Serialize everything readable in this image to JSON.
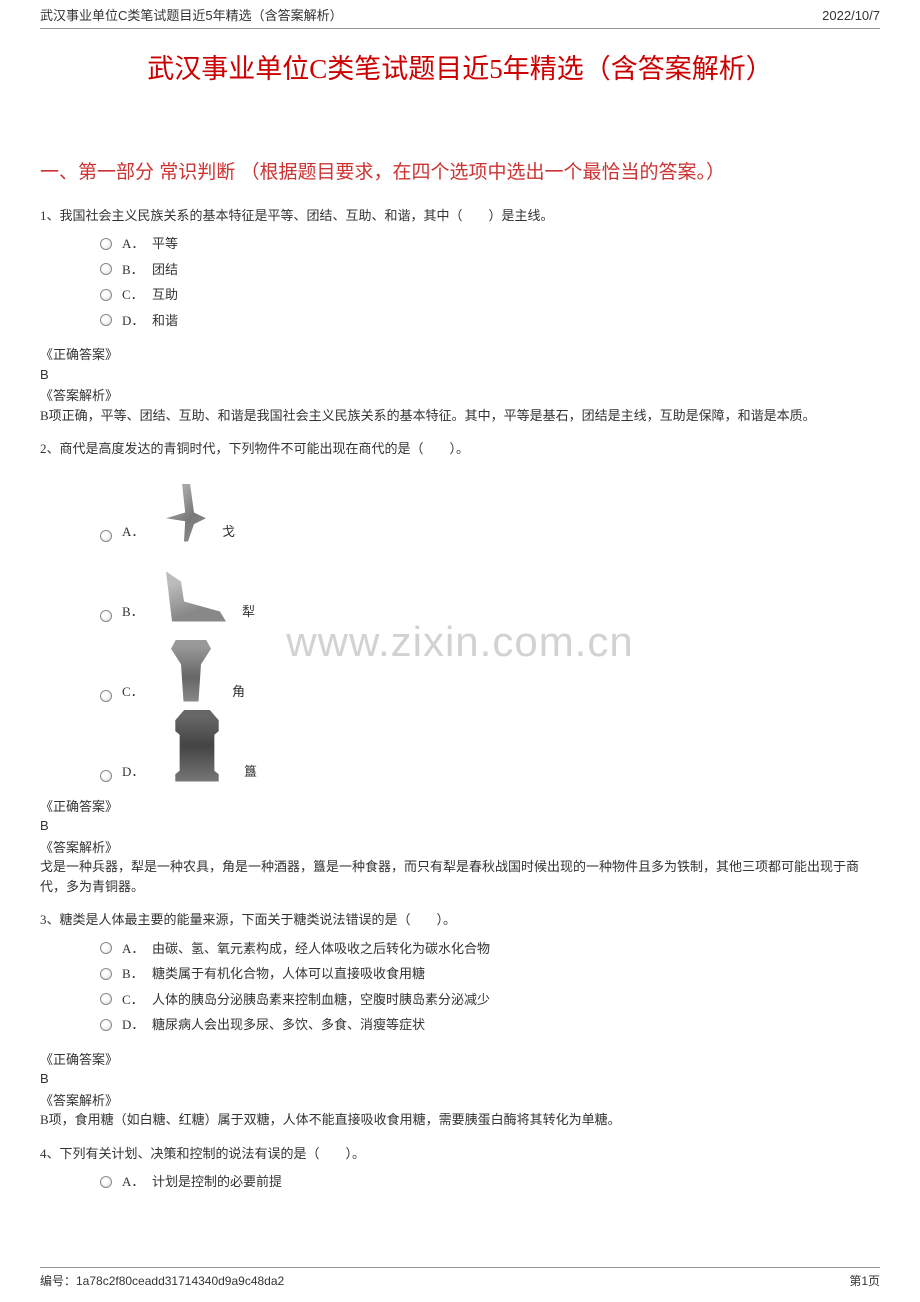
{
  "header": {
    "left": "武汉事业单位C类笔试题目近5年精选（含答案解析）",
    "right": "2022/10/7"
  },
  "main_title": "武汉事业单位C类笔试题目近5年精选（含答案解析）",
  "section_title": "一、第一部分 常识判断 （根据题目要求，在四个选项中选出一个最恰当的答案。）",
  "watermark": "www.zixin.com.cn",
  "questions": [
    {
      "stem": "1、我国社会主义民族关系的基本特征是平等、团结、互助、和谐，其中（　　）是主线。",
      "options": [
        {
          "letter": "A．",
          "text": "平等"
        },
        {
          "letter": "B．",
          "text": "团结"
        },
        {
          "letter": "C．",
          "text": "互助"
        },
        {
          "letter": "D．",
          "text": "和谐"
        }
      ],
      "answer_heading": "《正确答案》",
      "answer": "B",
      "analysis_heading": "《答案解析》",
      "analysis": "B项正确，平等、团结、互助、和谐是我国社会主义民族关系的基本特征。其中，平等是基石，团结是主线，互助是保障，和谐是本质。"
    },
    {
      "stem": "2、商代是高度发达的青铜时代，下列物件不可能出现在商代的是（　　）。",
      "image_options": [
        {
          "letter": "A．",
          "caption": "戈",
          "img_class": "img-ge"
        },
        {
          "letter": "B．",
          "caption": "犁",
          "img_class": "img-li"
        },
        {
          "letter": "C．",
          "caption": "角",
          "img_class": "img-jiao"
        },
        {
          "letter": "D．",
          "caption": "簋",
          "img_class": "img-gui"
        }
      ],
      "answer_heading": "《正确答案》",
      "answer": "B",
      "analysis_heading": "《答案解析》",
      "analysis": "戈是一种兵器，犁是一种农具，角是一种酒器，簋是一种食器，而只有犁是春秋战国时候出现的一种物件且多为铁制，其他三项都可能出现于商代，多为青铜器。"
    },
    {
      "stem": "3、糖类是人体最主要的能量来源，下面关于糖类说法错误的是（　　）。",
      "options": [
        {
          "letter": "A．",
          "text": "由碳、氢、氧元素构成，经人体吸收之后转化为碳水化合物"
        },
        {
          "letter": "B．",
          "text": "糖类属于有机化合物，人体可以直接吸收食用糖"
        },
        {
          "letter": "C．",
          "text": "人体的胰岛分泌胰岛素来控制血糖，空腹时胰岛素分泌减少"
        },
        {
          "letter": "D．",
          "text": "糖尿病人会出现多尿、多饮、多食、消瘦等症状"
        }
      ],
      "answer_heading": "《正确答案》",
      "answer": "B",
      "analysis_heading": "《答案解析》",
      "analysis": "B项，食用糖（如白糖、红糖）属于双糖，人体不能直接吸收食用糖，需要胰蛋白酶将其转化为单糖。"
    },
    {
      "stem": "4、下列有关计划、决策和控制的说法有误的是（　　）。",
      "options": [
        {
          "letter": "A．",
          "text": "计划是控制的必要前提"
        }
      ]
    }
  ],
  "footer": {
    "left": "编号：1a78c2f80ceadd31714340d9a9c48da2",
    "right": "第1页"
  }
}
